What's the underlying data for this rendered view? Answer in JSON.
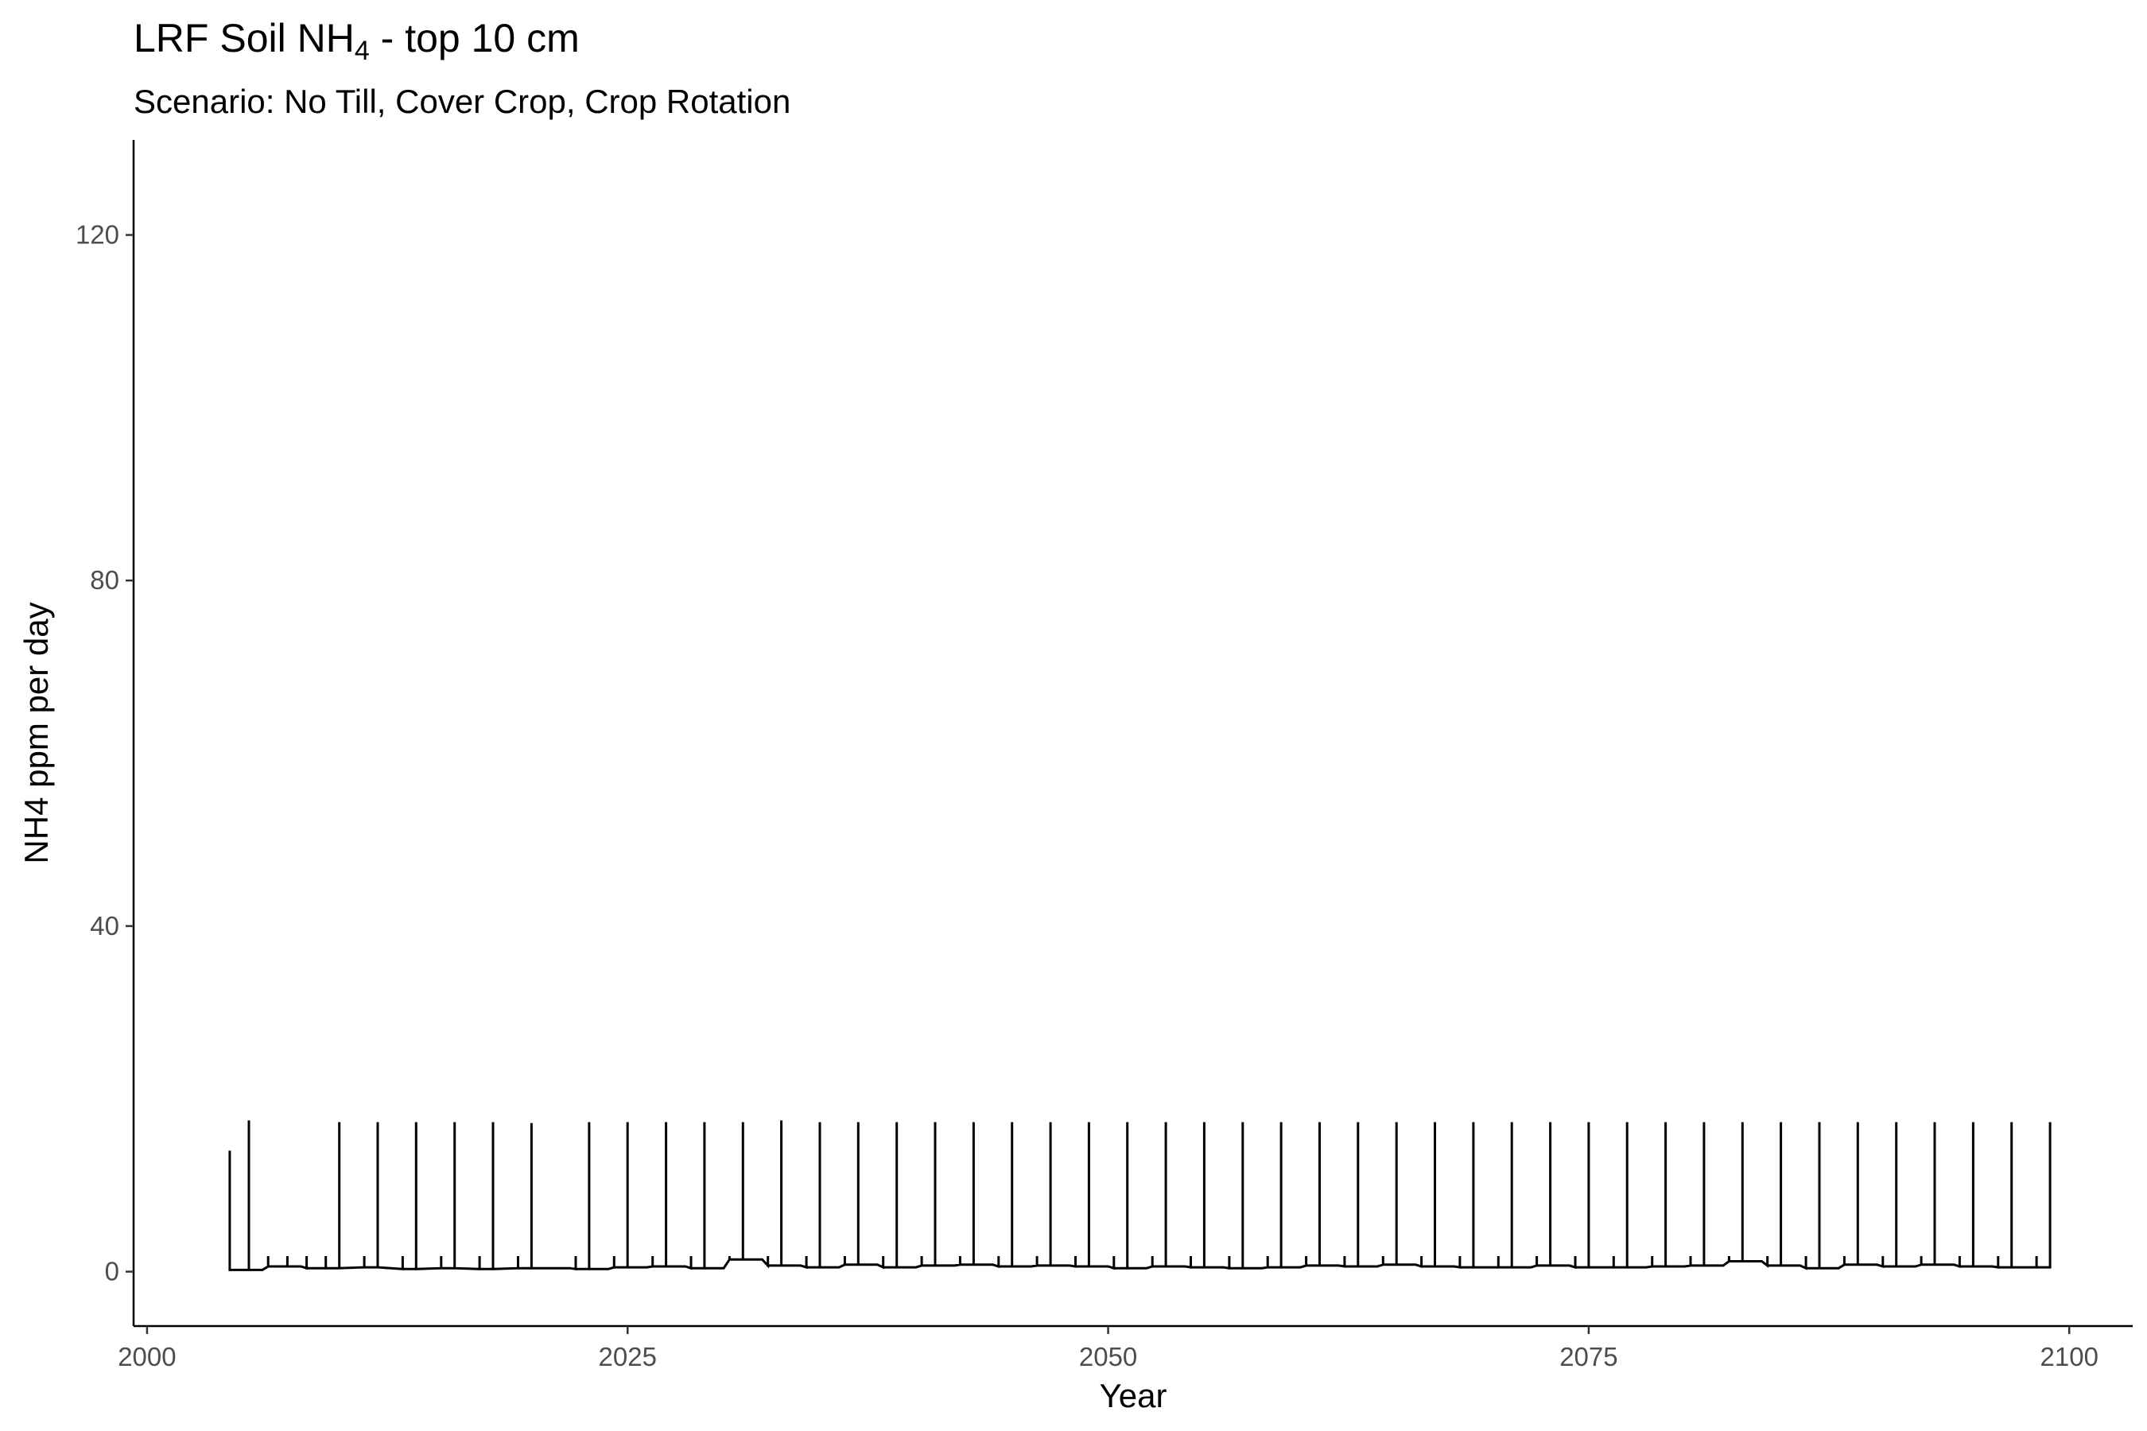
{
  "chart_data": {
    "type": "line",
    "title_text": "LRF Soil NH",
    "title_sub": "4",
    "title_suffix": " - top 10 cm",
    "subtitle": "Scenario: No Till, Cover Crop, Crop Rotation",
    "xlabel": "Year",
    "ylabel": "NH4 ppm per day",
    "xlim": [
      1999.3,
      2103.3
    ],
    "ylim": [
      -6.3,
      131
    ],
    "xticks": [
      2000,
      2025,
      2050,
      2075,
      2100
    ],
    "yticks": [
      0,
      40,
      80,
      120
    ],
    "grid": false,
    "line_color": "#000000",
    "spike_years": [
      2004.3,
      2005.3,
      2010,
      2012,
      2014,
      2016,
      2018,
      2020,
      2023,
      2025,
      2027,
      2029,
      2031,
      2033,
      2035,
      2037,
      2039,
      2041,
      2043,
      2045,
      2047,
      2049,
      2051,
      2053,
      2055,
      2057,
      2059,
      2061,
      2063,
      2065,
      2067,
      2069,
      2071,
      2073,
      2075,
      2077,
      2079,
      2081,
      2083,
      2085,
      2087,
      2089,
      2091,
      2093,
      2095,
      2097,
      2099
    ],
    "spike_values": [
      14,
      17.5,
      17.3,
      17.3,
      17.3,
      17.3,
      17.3,
      17.2,
      17.3,
      17.3,
      17.3,
      17.3,
      17.3,
      17.5,
      17.3,
      17.3,
      17.3,
      17.3,
      17.3,
      17.3,
      17.3,
      17.3,
      17.3,
      17.3,
      17.3,
      17.3,
      17.3,
      17.3,
      17.3,
      17.3,
      17.3,
      17.3,
      17.3,
      17.3,
      17.3,
      17.3,
      17.3,
      17.3,
      17.3,
      17.3,
      17.3,
      17.3,
      17.3,
      17.3,
      17.3,
      17.3,
      17.3
    ],
    "baseline_years": [
      2004.3,
      2006,
      2008,
      2010,
      2012,
      2014,
      2016,
      2018,
      2020,
      2022,
      2024,
      2026,
      2028,
      2030,
      2032,
      2034,
      2036,
      2038,
      2040,
      2042,
      2044,
      2046,
      2048,
      2050,
      2052,
      2054,
      2056,
      2058,
      2060,
      2062,
      2064,
      2066,
      2068,
      2070,
      2072,
      2074,
      2076,
      2078,
      2080,
      2082,
      2084,
      2086,
      2088,
      2090,
      2092,
      2094,
      2096,
      2099
    ],
    "baseline_values": [
      0.2,
      0.6,
      0.4,
      0.5,
      0.3,
      0.4,
      0.3,
      0.4,
      0.4,
      0.3,
      0.5,
      0.6,
      0.4,
      1.4,
      0.7,
      0.5,
      0.8,
      0.5,
      0.7,
      0.8,
      0.6,
      0.7,
      0.6,
      0.4,
      0.6,
      0.5,
      0.4,
      0.5,
      0.7,
      0.6,
      0.8,
      0.6,
      0.5,
      0.5,
      0.7,
      0.5,
      0.5,
      0.6,
      0.7,
      1.2,
      0.7,
      0.4,
      0.8,
      0.6,
      0.8,
      0.6,
      0.5,
      0.6
    ],
    "minor_spikes": [
      2006.3,
      2007.3,
      2008.3,
      2009.3,
      2011.3,
      2013.3,
      2015.3,
      2017.3,
      2019.3,
      2022.3,
      2024.3,
      2026.3,
      2028.3,
      2030.3,
      2032.3,
      2034.3,
      2036.3,
      2038.3,
      2040.3,
      2042.3,
      2044.3,
      2046.3,
      2048.3,
      2050.3,
      2052.3,
      2054.3,
      2056.3,
      2058.3,
      2060.3,
      2062.3,
      2064.3,
      2066.3,
      2068.3,
      2070.3,
      2072.3,
      2074.3,
      2076.3,
      2078.3,
      2080.3,
      2082.3,
      2084.3,
      2086.3,
      2088.3,
      2090.3,
      2092.3,
      2094.3,
      2096.3,
      2098.3
    ],
    "minor_spike_value": 1.8
  }
}
